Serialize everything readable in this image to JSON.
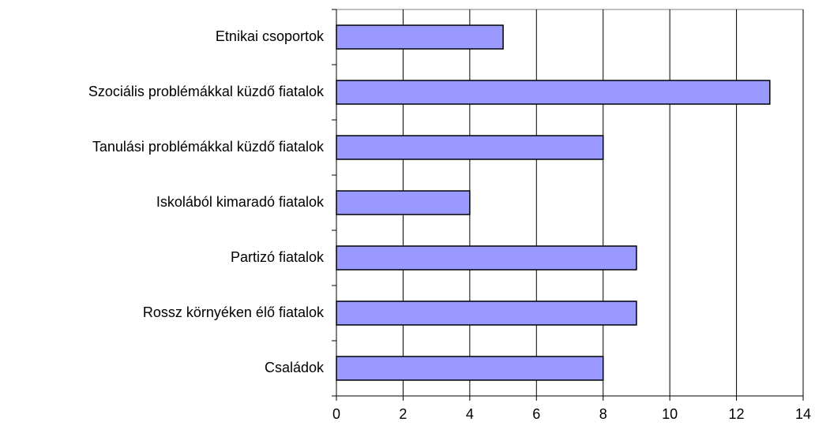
{
  "chart_data": {
    "type": "bar",
    "orientation": "horizontal",
    "categories": [
      "Etnikai csoportok",
      "Szociális problémákkal küzdő fiatalok",
      "Tanulási problémákkal küzdő fiatalok",
      "Iskolából kimaradó fiatalok",
      "Partizó fiatalok",
      "Rossz környéken élő fiatalok",
      "Családok"
    ],
    "values": [
      5,
      13,
      8,
      4,
      9,
      9,
      8
    ],
    "color": "#9999ff",
    "xlim": [
      0,
      14
    ],
    "xticks": [
      0,
      2,
      4,
      6,
      8,
      10,
      12,
      14
    ],
    "grid": true
  }
}
